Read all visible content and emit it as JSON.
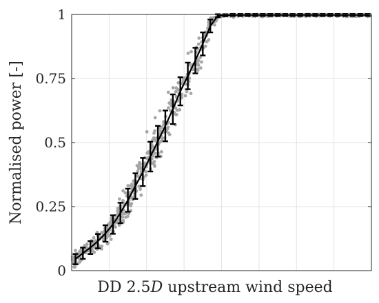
{
  "chart_data": {
    "type": "scatter",
    "title": "",
    "xlabel": "DD 2.5D upstream wind speed",
    "xlabel_parts": [
      "DD 2.5",
      "D",
      " upstream wind speed"
    ],
    "ylabel": "Normalised power [-]",
    "ylim": [
      0,
      1
    ],
    "xlim": [
      0,
      8
    ],
    "y_ticks": [
      0,
      0.25,
      0.5,
      0.75,
      1
    ],
    "y_tick_labels": [
      "0",
      "0.25",
      "0.5",
      "0.75",
      "1"
    ],
    "x_tick_labels_shown": false,
    "grid": true,
    "series": [
      {
        "kind": "binned-mean-with-errorbars",
        "color": "#000000",
        "x": [
          0.1,
          0.3,
          0.5,
          0.7,
          0.9,
          1.1,
          1.3,
          1.5,
          1.7,
          1.9,
          2.1,
          2.3,
          2.5,
          2.7,
          2.9,
          3.1,
          3.3,
          3.5,
          3.7,
          3.9,
          4.1,
          4.3,
          4.5,
          4.7,
          4.9,
          5.1,
          5.3,
          5.5,
          5.7,
          5.9,
          6.1,
          6.3,
          6.5,
          6.7,
          6.9,
          7.1,
          7.3,
          7.5,
          7.7,
          7.9
        ],
        "mean": [
          0.045,
          0.068,
          0.09,
          0.115,
          0.145,
          0.18,
          0.225,
          0.275,
          0.33,
          0.385,
          0.445,
          0.505,
          0.565,
          0.63,
          0.7,
          0.76,
          0.82,
          0.885,
          0.955,
          0.995,
          0.997,
          0.998,
          0.998,
          0.998,
          0.998,
          0.998,
          0.998,
          0.998,
          0.998,
          0.998,
          0.998,
          0.998,
          0.998,
          0.998,
          0.998,
          0.998,
          0.998,
          0.998,
          0.998,
          0.998
        ],
        "err": [
          0.02,
          0.022,
          0.025,
          0.028,
          0.032,
          0.036,
          0.04,
          0.045,
          0.05,
          0.055,
          0.058,
          0.06,
          0.06,
          0.058,
          0.055,
          0.052,
          0.05,
          0.045,
          0.025,
          0.006,
          0.004,
          0.004,
          0.004,
          0.004,
          0.004,
          0.004,
          0.004,
          0.004,
          0.004,
          0.004,
          0.004,
          0.004,
          0.004,
          0.004,
          0.004,
          0.004,
          0.004,
          0.004,
          0.004,
          0.004
        ]
      },
      {
        "kind": "raw-scatter",
        "color": "#a6a6a6",
        "x_range": [
          0,
          8
        ],
        "spread": 0.06,
        "count": 900
      }
    ]
  }
}
